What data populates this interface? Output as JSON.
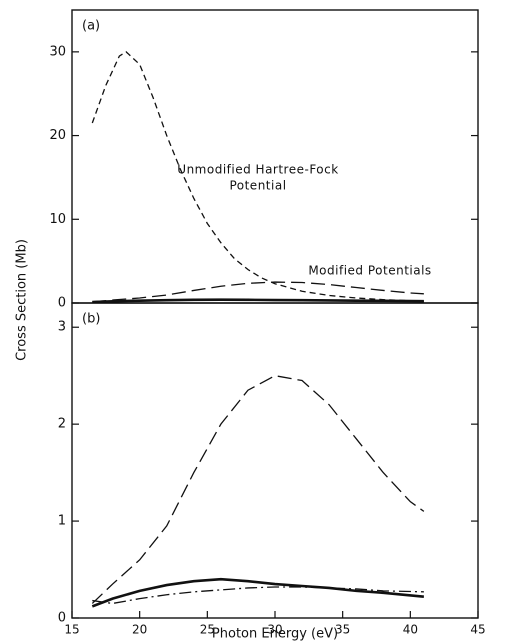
{
  "chart_data": [
    {
      "type": "line",
      "ylabel": "Cross Section (Mb)",
      "panel_label": "(a)",
      "xlim": [
        15,
        45
      ],
      "ylim": [
        0,
        35
      ],
      "yticks": [
        0,
        10,
        20,
        30
      ],
      "annotations": [
        "Unmodified Hartree-Fock",
        "Potential",
        "Modified Potentials"
      ],
      "series": [
        {
          "color": "#111111",
          "style": "dashed",
          "x": [
            16.5,
            17.5,
            18.5,
            19,
            20,
            21,
            22,
            23,
            24,
            25,
            26,
            27,
            28,
            29,
            30,
            32,
            34,
            36,
            38,
            41
          ],
          "values": [
            21.5,
            26,
            29.5,
            30,
            28.5,
            24.5,
            20,
            16,
            12.5,
            9.5,
            7.2,
            5.3,
            4,
            3,
            2.3,
            1.4,
            0.9,
            0.6,
            0.4,
            0.2
          ]
        },
        {
          "color": "#111111",
          "style": "longdash",
          "x": [
            16.5,
            18,
            20,
            22,
            24,
            26,
            28,
            30,
            32,
            34,
            36,
            38,
            40,
            41
          ],
          "values": [
            0.15,
            0.35,
            0.6,
            0.95,
            1.5,
            2.0,
            2.35,
            2.5,
            2.45,
            2.2,
            1.85,
            1.5,
            1.2,
            1.1
          ]
        },
        {
          "color": "#111111",
          "style": "solid",
          "x": [
            16.5,
            18,
            20,
            22,
            24,
            26,
            28,
            30,
            32,
            34,
            36,
            38,
            41
          ],
          "values": [
            0.12,
            0.2,
            0.28,
            0.34,
            0.38,
            0.4,
            0.38,
            0.35,
            0.33,
            0.31,
            0.28,
            0.26,
            0.22
          ]
        }
      ]
    },
    {
      "type": "line",
      "xlabel": "Photon Energy (eV)",
      "panel_label": "(b)",
      "xlim": [
        15,
        45
      ],
      "xticks": [
        15,
        20,
        25,
        30,
        35,
        40,
        45
      ],
      "ylim": [
        0,
        3.25
      ],
      "yticks": [
        0,
        1,
        2,
        3
      ],
      "series": [
        {
          "color": "#111111",
          "style": "longdash",
          "x": [
            16.5,
            18,
            20,
            22,
            24,
            26,
            28,
            30,
            32,
            34,
            36,
            38,
            40,
            41
          ],
          "values": [
            0.15,
            0.35,
            0.6,
            0.95,
            1.5,
            2.0,
            2.35,
            2.5,
            2.45,
            2.2,
            1.85,
            1.5,
            1.2,
            1.1
          ]
        },
        {
          "color": "#111111",
          "style": "solid",
          "x": [
            16.5,
            18,
            20,
            22,
            24,
            26,
            28,
            30,
            32,
            34,
            36,
            38,
            41
          ],
          "values": [
            0.12,
            0.2,
            0.28,
            0.34,
            0.38,
            0.4,
            0.38,
            0.35,
            0.33,
            0.31,
            0.28,
            0.26,
            0.22
          ]
        },
        {
          "color": "#111111",
          "style": "dashdot",
          "x": [
            16.5,
            18,
            20,
            22,
            24,
            26,
            28,
            30,
            32,
            34,
            36,
            38,
            41
          ],
          "values": [
            0.18,
            0.15,
            0.2,
            0.24,
            0.27,
            0.29,
            0.31,
            0.32,
            0.32,
            0.31,
            0.3,
            0.28,
            0.27
          ]
        }
      ]
    }
  ]
}
